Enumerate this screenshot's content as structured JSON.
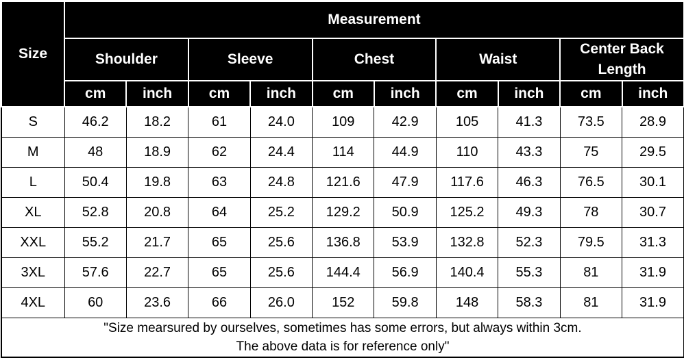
{
  "table": {
    "header": {
      "size": "Size",
      "measurement": "Measurement",
      "groups": [
        "Shoulder",
        "Sleeve",
        "Chest",
        "Waist",
        "Center Back Length"
      ],
      "units": [
        "cm",
        "inch",
        "cm",
        "inch",
        "cm",
        "inch",
        "cm",
        "inch",
        "cm",
        "inch"
      ]
    },
    "rows": [
      [
        "S",
        "46.2",
        "18.2",
        "61",
        "24.0",
        "109",
        "42.9",
        "105",
        "41.3",
        "73.5",
        "28.9"
      ],
      [
        "M",
        "48",
        "18.9",
        "62",
        "24.4",
        "114",
        "44.9",
        "110",
        "43.3",
        "75",
        "29.5"
      ],
      [
        "L",
        "50.4",
        "19.8",
        "63",
        "24.8",
        "121.6",
        "47.9",
        "117.6",
        "46.3",
        "76.5",
        "30.1"
      ],
      [
        "XL",
        "52.8",
        "20.8",
        "64",
        "25.2",
        "129.2",
        "50.9",
        "125.2",
        "49.3",
        "78",
        "30.7"
      ],
      [
        "XXL",
        "55.2",
        "21.7",
        "65",
        "25.6",
        "136.8",
        "53.9",
        "132.8",
        "52.3",
        "79.5",
        "31.3"
      ],
      [
        "3XL",
        "57.6",
        "22.7",
        "65",
        "25.6",
        "144.4",
        "56.9",
        "140.4",
        "55.3",
        "81",
        "31.9"
      ],
      [
        "4XL",
        "60",
        "23.6",
        "66",
        "26.0",
        "152",
        "59.8",
        "148",
        "58.3",
        "81",
        "31.9"
      ]
    ],
    "footer": [
      "\"Size mearsured by ourselves, sometimes has some errors, but always within 3cm.",
      "The above data is for reference only\""
    ]
  }
}
